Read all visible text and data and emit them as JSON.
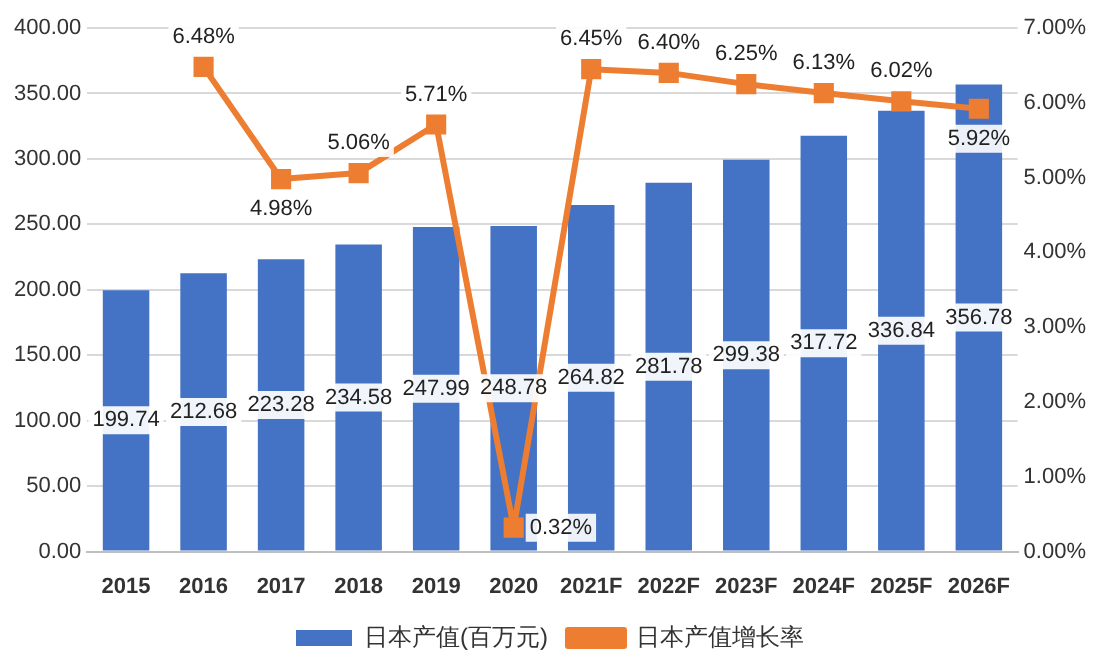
{
  "chart_data": {
    "type": "bar",
    "categories": [
      "2015",
      "2016",
      "2017",
      "2018",
      "2019",
      "2020",
      "2021F",
      "2022F",
      "2023F",
      "2024F",
      "2025F",
      "2026F"
    ],
    "series": [
      {
        "name": "日本产值(百万元)",
        "color": "#4472c4",
        "values": [
          199.74,
          212.68,
          223.28,
          234.58,
          247.99,
          248.78,
          264.82,
          281.78,
          299.38,
          317.72,
          336.84,
          356.78
        ],
        "value_labels": [
          "199.74",
          "212.68",
          "223.28",
          "234.58",
          "247.99",
          "248.78",
          "264.82",
          "281.78",
          "299.38",
          "317.72",
          "336.84",
          "356.78"
        ]
      },
      {
        "name": "日本产值增长率",
        "type": "line",
        "axis": "y2",
        "color": "#ed7d31",
        "values": [
          null,
          6.48,
          4.98,
          5.06,
          5.71,
          0.32,
          6.45,
          6.4,
          6.25,
          6.13,
          6.02,
          5.92
        ],
        "value_labels": [
          null,
          "6.48%",
          "4.98%",
          "5.06%",
          "5.71%",
          "0.32%",
          "6.45%",
          "6.40%",
          "6.25%",
          "6.13%",
          "6.02%",
          "5.92%"
        ]
      }
    ],
    "ylim": [
      0,
      400
    ],
    "yticks": [
      {
        "value": 0,
        "label": "0.00"
      },
      {
        "value": 50,
        "label": "50.00"
      },
      {
        "value": 100,
        "label": "100.00"
      },
      {
        "value": 150,
        "label": "150.00"
      },
      {
        "value": 200,
        "label": "200.00"
      },
      {
        "value": 250,
        "label": "250.00"
      },
      {
        "value": 300,
        "label": "300.00"
      },
      {
        "value": 350,
        "label": "350.00"
      },
      {
        "value": 400,
        "label": "400.00"
      }
    ],
    "y2lim": [
      0,
      7
    ],
    "y2ticks": [
      {
        "value": 0,
        "label": "0.00%"
      },
      {
        "value": 1,
        "label": "1.00%"
      },
      {
        "value": 2,
        "label": "2.00%"
      },
      {
        "value": 3,
        "label": "3.00%"
      },
      {
        "value": 4,
        "label": "4.00%"
      },
      {
        "value": 5,
        "label": "5.00%"
      },
      {
        "value": 6,
        "label": "6.00%"
      },
      {
        "value": 7,
        "label": "7.00%"
      }
    ],
    "grid": "y",
    "legend": "bottom",
    "marker": "square",
    "line_style": "solid"
  }
}
